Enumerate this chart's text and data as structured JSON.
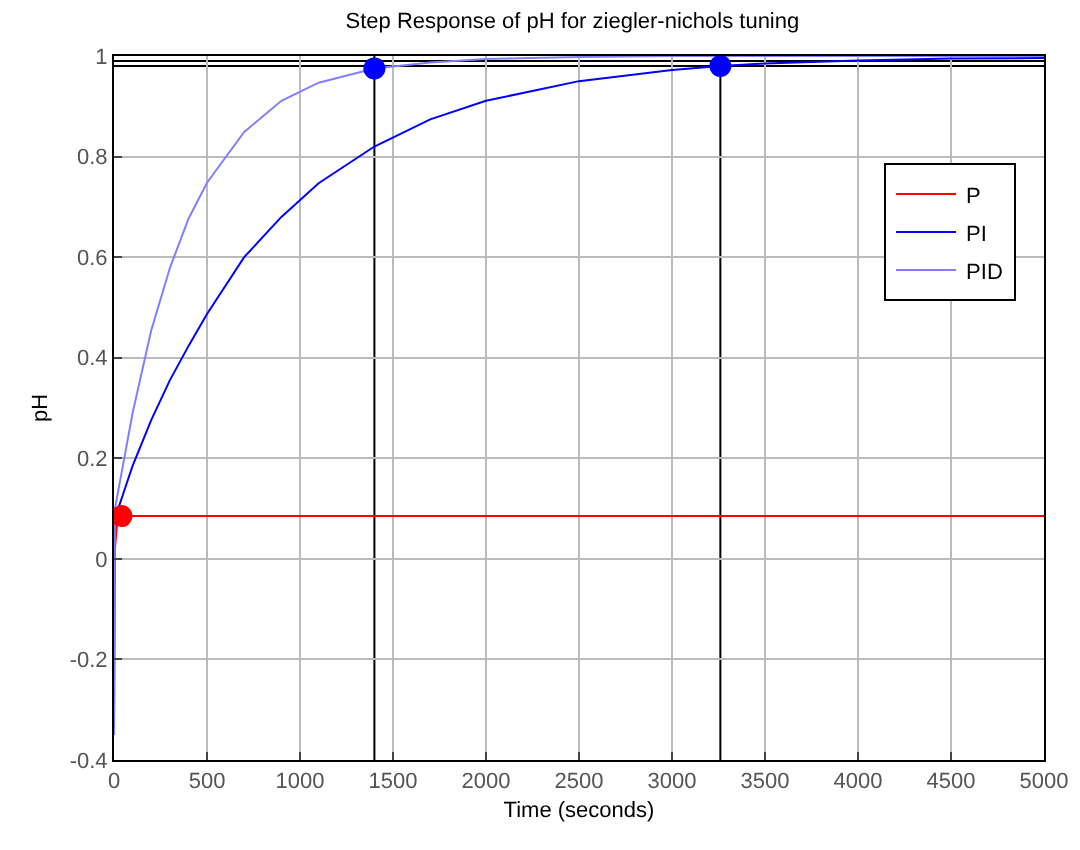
{
  "chart_data": {
    "type": "line",
    "title": "Step Response of pH for ziegler-nichols tuning",
    "xlabel": "Time (seconds)",
    "ylabel": "pH",
    "xlim": [
      0,
      5000
    ],
    "xticks": [
      0,
      500,
      1000,
      1500,
      2000,
      2500,
      3000,
      3500,
      4000,
      4500,
      5000
    ],
    "ylim": [
      -0.4,
      1
    ],
    "yticks": [
      -0.4,
      -0.2,
      0,
      0.2,
      0.4,
      0.6,
      0.8,
      1
    ],
    "grid": true,
    "legend": "right",
    "marker": "none",
    "line_style": "solid",
    "series": [
      {
        "name": "P",
        "color": "#ff0000",
        "x": [
          0,
          20,
          5000
        ],
        "values": [
          0,
          0.085,
          0.085
        ]
      },
      {
        "name": "PI",
        "color": "#0000ff",
        "x": [
          0,
          5,
          50,
          100,
          200,
          300,
          400,
          500,
          700,
          900,
          1100,
          1400,
          1700,
          2000,
          2500,
          3000,
          3260,
          3500,
          4000,
          4500,
          5000
        ],
        "values": [
          -0.35,
          0.08,
          0.13,
          0.185,
          0.276,
          0.355,
          0.423,
          0.487,
          0.6,
          0.68,
          0.747,
          0.82,
          0.874,
          0.911,
          0.95,
          0.972,
          0.98,
          0.985,
          0.991,
          0.995,
          0.996
        ]
      },
      {
        "name": "PID",
        "color": "#8080ff",
        "x": [
          0,
          5,
          50,
          100,
          200,
          300,
          400,
          500,
          700,
          900,
          1100,
          1400,
          1700,
          2000,
          2500,
          3000,
          5000
        ],
        "values": [
          -0.35,
          0.1,
          0.19,
          0.29,
          0.454,
          0.578,
          0.676,
          0.748,
          0.849,
          0.911,
          0.947,
          0.975,
          0.987,
          0.994,
          0.998,
          1,
          1
        ]
      },
      {
        "type": "scatter",
        "marker": "circle",
        "color": "#ff0000",
        "x": [
          40
        ],
        "values": [
          0.085
        ]
      },
      {
        "type": "scatter",
        "marker": "circle",
        "color": "#0000ff",
        "x": [
          1400,
          3260
        ],
        "values": [
          0.975,
          0.98
        ]
      }
    ],
    "ref_lines": [
      {
        "axis": "y",
        "value": 0.98,
        "color": "#000000"
      },
      {
        "axis": "y",
        "value": 0.99,
        "color": "#000000"
      },
      {
        "axis": "x",
        "value": 1400,
        "color": "#000000"
      },
      {
        "axis": "x",
        "value": 3260,
        "color": "#000000"
      }
    ]
  }
}
